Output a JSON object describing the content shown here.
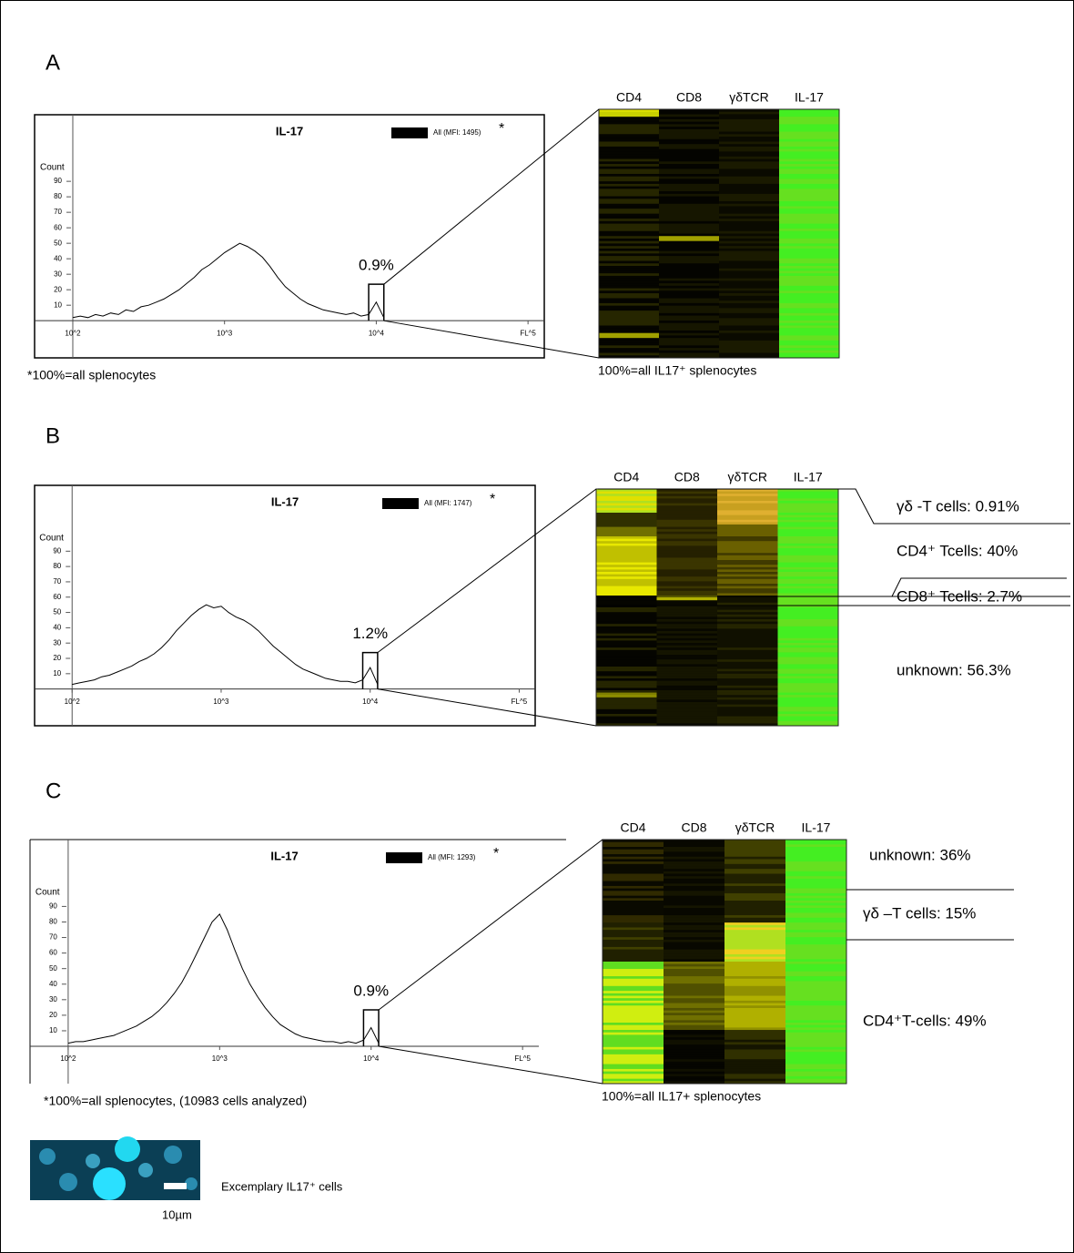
{
  "chart_data": [
    {
      "type": "line",
      "title": "IL-17",
      "y_label": "Count",
      "legend_mark": "*",
      "gate": "0.9%",
      "footnote": "*100%=all splenocytes",
      "log_x": true,
      "xlim": [
        56,
        128000
      ],
      "ylim": [
        -24,
        133
      ],
      "xticks": [
        {
          "value": 100,
          "label": "10^2"
        },
        {
          "value": 1000,
          "label": "10^3"
        },
        {
          "value": 10000,
          "label": "10^4"
        },
        {
          "value": 100000,
          "label": "FL^5"
        }
      ],
      "yticks": [
        10,
        20,
        30,
        40,
        50,
        60,
        70,
        80,
        90
      ],
      "x": [
        100,
        112,
        126,
        141,
        158,
        178,
        200,
        224,
        251,
        282,
        316,
        355,
        398,
        447,
        501,
        562,
        631,
        708,
        794,
        891,
        1000,
        1122,
        1259,
        1413,
        1585,
        1778,
        1995,
        2239,
        2512,
        2818,
        3162,
        3548,
        3981,
        4467,
        5012,
        5623,
        6310,
        7079,
        7943,
        8913,
        10000,
        11220
      ],
      "series": [
        {
          "name": "All (MFI: 1495)",
          "color": "#000000",
          "values": [
            2,
            3,
            2,
            4,
            3,
            5,
            4,
            7,
            6,
            9,
            10,
            12,
            14,
            17,
            20,
            24,
            28,
            33,
            36,
            40,
            44,
            47,
            50,
            48,
            45,
            41,
            35,
            28,
            22,
            18,
            14,
            11,
            9,
            7,
            6,
            5,
            4,
            5,
            3,
            4,
            12,
            2
          ]
        }
      ]
    },
    {
      "type": "line",
      "title": "IL-17",
      "y_label": "Count",
      "legend_mark": "*",
      "gate": "1.2%",
      "log_x": true,
      "xlim": [
        56,
        128000
      ],
      "ylim": [
        -24,
        133
      ],
      "xticks": [
        {
          "value": 100,
          "label": "10^2"
        },
        {
          "value": 1000,
          "label": "10^3"
        },
        {
          "value": 10000,
          "label": "10^4"
        },
        {
          "value": 100000,
          "label": "FL^5"
        }
      ],
      "yticks": [
        10,
        20,
        30,
        40,
        50,
        60,
        70,
        80,
        90
      ],
      "x": [
        100,
        112,
        126,
        141,
        158,
        178,
        200,
        224,
        251,
        282,
        316,
        355,
        398,
        447,
        501,
        562,
        631,
        708,
        794,
        891,
        1000,
        1122,
        1259,
        1413,
        1585,
        1778,
        1995,
        2239,
        2512,
        2818,
        3162,
        3548,
        3981,
        4467,
        5012,
        5623,
        6310,
        7079,
        7943,
        8913,
        10000,
        11220
      ],
      "series": [
        {
          "name": "All (MFI: 1747)",
          "color": "#000000",
          "values": [
            3,
            4,
            5,
            6,
            8,
            9,
            11,
            13,
            15,
            18,
            20,
            23,
            27,
            32,
            38,
            43,
            48,
            52,
            55,
            53,
            54,
            50,
            47,
            45,
            42,
            38,
            33,
            28,
            24,
            20,
            16,
            13,
            11,
            9,
            7,
            6,
            5,
            5,
            4,
            6,
            14,
            3
          ]
        }
      ]
    },
    {
      "type": "line",
      "title": "IL-17",
      "y_label": "Count",
      "legend_mark": "*",
      "gate": "0.9%",
      "footnote": "*100%=all splenocytes, (10983 cells analyzed)",
      "log_x": true,
      "xlim": [
        56,
        128000
      ],
      "ylim": [
        -24,
        133
      ],
      "xticks": [
        {
          "value": 100,
          "label": "10^2"
        },
        {
          "value": 1000,
          "label": "10^3"
        },
        {
          "value": 10000,
          "label": "10^4"
        },
        {
          "value": 100000,
          "label": "FL^5"
        }
      ],
      "yticks": [
        10,
        20,
        30,
        40,
        50,
        60,
        70,
        80,
        90
      ],
      "x": [
        100,
        112,
        126,
        141,
        158,
        178,
        200,
        224,
        251,
        282,
        316,
        355,
        398,
        447,
        501,
        562,
        631,
        708,
        794,
        891,
        1000,
        1122,
        1259,
        1413,
        1585,
        1778,
        1995,
        2239,
        2512,
        2818,
        3162,
        3548,
        3981,
        4467,
        5012,
        5623,
        6310,
        7079,
        7943,
        8913,
        10000,
        11220
      ],
      "series": [
        {
          "name": "All (MFI: 1293)",
          "color": "#000000",
          "values": [
            2,
            3,
            3,
            4,
            5,
            6,
            7,
            9,
            11,
            13,
            16,
            19,
            23,
            28,
            34,
            41,
            50,
            60,
            70,
            80,
            85,
            75,
            62,
            50,
            40,
            32,
            25,
            19,
            14,
            11,
            8,
            6,
            5,
            4,
            3,
            3,
            2,
            3,
            2,
            4,
            12,
            2
          ]
        }
      ]
    }
  ],
  "panels": [
    {
      "label": "A",
      "heatmap": {
        "columns": [
          "CD4",
          "CD8",
          "γδTCR",
          "IL-17"
        ],
        "footnote": "100%=all IL17⁺ splenocytes"
      }
    },
    {
      "label": "B",
      "heatmap": {
        "columns": [
          "CD4",
          "CD8",
          "γδTCR",
          "IL-17"
        ],
        "annotations": [
          "γδ -T cells: 0.91%",
          "CD4⁺ Tcells: 40%",
          "CD8⁺ Tcells: 2.7%",
          "unknown: 56.3%"
        ]
      }
    },
    {
      "label": "C",
      "heatmap": {
        "columns": [
          "CD4",
          "CD8",
          "γδTCR",
          "IL-17"
        ],
        "footnote": "100%=all IL17+ splenocytes",
        "annotations": [
          "unknown: 36%",
          "γδ –T cells: 15%",
          "CD4⁺T-cells: 49%"
        ]
      }
    }
  ],
  "micrograph": {
    "scale": "10µm",
    "caption": "Excemplary IL17⁺ cells"
  }
}
